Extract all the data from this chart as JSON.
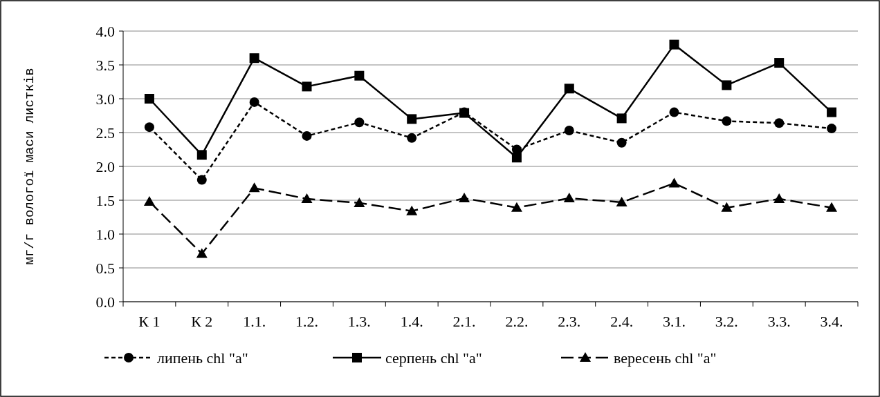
{
  "chart_data": {
    "type": "line",
    "ylabel": "мг/г вологої маси листків",
    "categories": [
      "К 1",
      "К 2",
      "1.1.",
      "1.2.",
      "1.3.",
      "1.4.",
      "2.1.",
      "2.2.",
      "2.3.",
      "2.4.",
      "3.1.",
      "3.2.",
      "3.3.",
      "3.4."
    ],
    "series": [
      {
        "name": "липень chl \"a\"",
        "color": "#000000",
        "marker": "circle",
        "line_style": "dotted",
        "values": [
          2.58,
          1.8,
          2.95,
          2.45,
          2.65,
          2.42,
          2.8,
          2.25,
          2.53,
          2.35,
          2.8,
          2.67,
          2.64,
          2.56
        ]
      },
      {
        "name": "серпень chl \"a\"",
        "color": "#000000",
        "marker": "square",
        "line_style": "solid",
        "values": [
          3.0,
          2.17,
          3.6,
          3.18,
          3.34,
          2.7,
          2.79,
          2.13,
          3.15,
          2.71,
          3.8,
          3.2,
          3.53,
          2.8
        ]
      },
      {
        "name": "вересень chl \"a\"",
        "color": "#000000",
        "marker": "triangle",
        "line_style": "dashed",
        "values": [
          1.48,
          0.71,
          1.68,
          1.52,
          1.46,
          1.34,
          1.53,
          1.39,
          1.53,
          1.47,
          1.75,
          1.39,
          1.52,
          1.39
        ]
      }
    ],
    "ylim": [
      0,
      4
    ],
    "yticks": [
      {
        "value": 0,
        "label": "0.0"
      },
      {
        "value": 0.5,
        "label": "0.5"
      },
      {
        "value": 1,
        "label": "1.0"
      },
      {
        "value": 1.5,
        "label": "1.5"
      },
      {
        "value": 2,
        "label": "2.0"
      },
      {
        "value": 2.5,
        "label": "2.5"
      },
      {
        "value": 3,
        "label": "3.0"
      },
      {
        "value": 3.5,
        "label": "3.5"
      },
      {
        "value": 4,
        "label": "4.0"
      }
    ],
    "grid": "y",
    "legend": "bottom"
  }
}
